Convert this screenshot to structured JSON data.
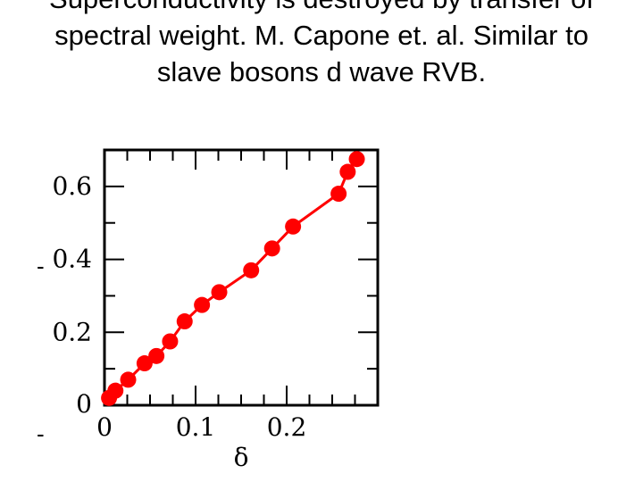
{
  "slide": {
    "title": "Superconductivity is destroyed by transfer of spectral weight. M. Capone et. al.  Similar to  slave bosons d wave RVB.",
    "bullets": [
      "-",
      "-"
    ]
  },
  "chart_data": {
    "type": "line",
    "title": "",
    "xlabel": "δ",
    "ylabel": "",
    "xlim": [
      0,
      0.3
    ],
    "ylim": [
      0,
      0.7
    ],
    "xticks": [
      0,
      0.1,
      0.2
    ],
    "xtick_labels": [
      "0",
      "0.1",
      "0.2"
    ],
    "yticks": [
      0,
      0.2,
      0.4,
      0.6
    ],
    "ytick_labels": [
      "0",
      "0.2",
      "0.4",
      "0.6"
    ],
    "grid": false,
    "legend": "none",
    "series": [
      {
        "color": "#ff0000",
        "x": [
          0.005,
          0.012,
          0.026,
          0.044,
          0.057,
          0.072,
          0.088,
          0.107,
          0.126,
          0.161,
          0.184,
          0.207,
          0.257,
          0.267,
          0.277
        ],
        "y": [
          0.02,
          0.04,
          0.07,
          0.115,
          0.135,
          0.175,
          0.23,
          0.275,
          0.31,
          0.37,
          0.43,
          0.49,
          0.58,
          0.64,
          0.675
        ]
      }
    ]
  }
}
